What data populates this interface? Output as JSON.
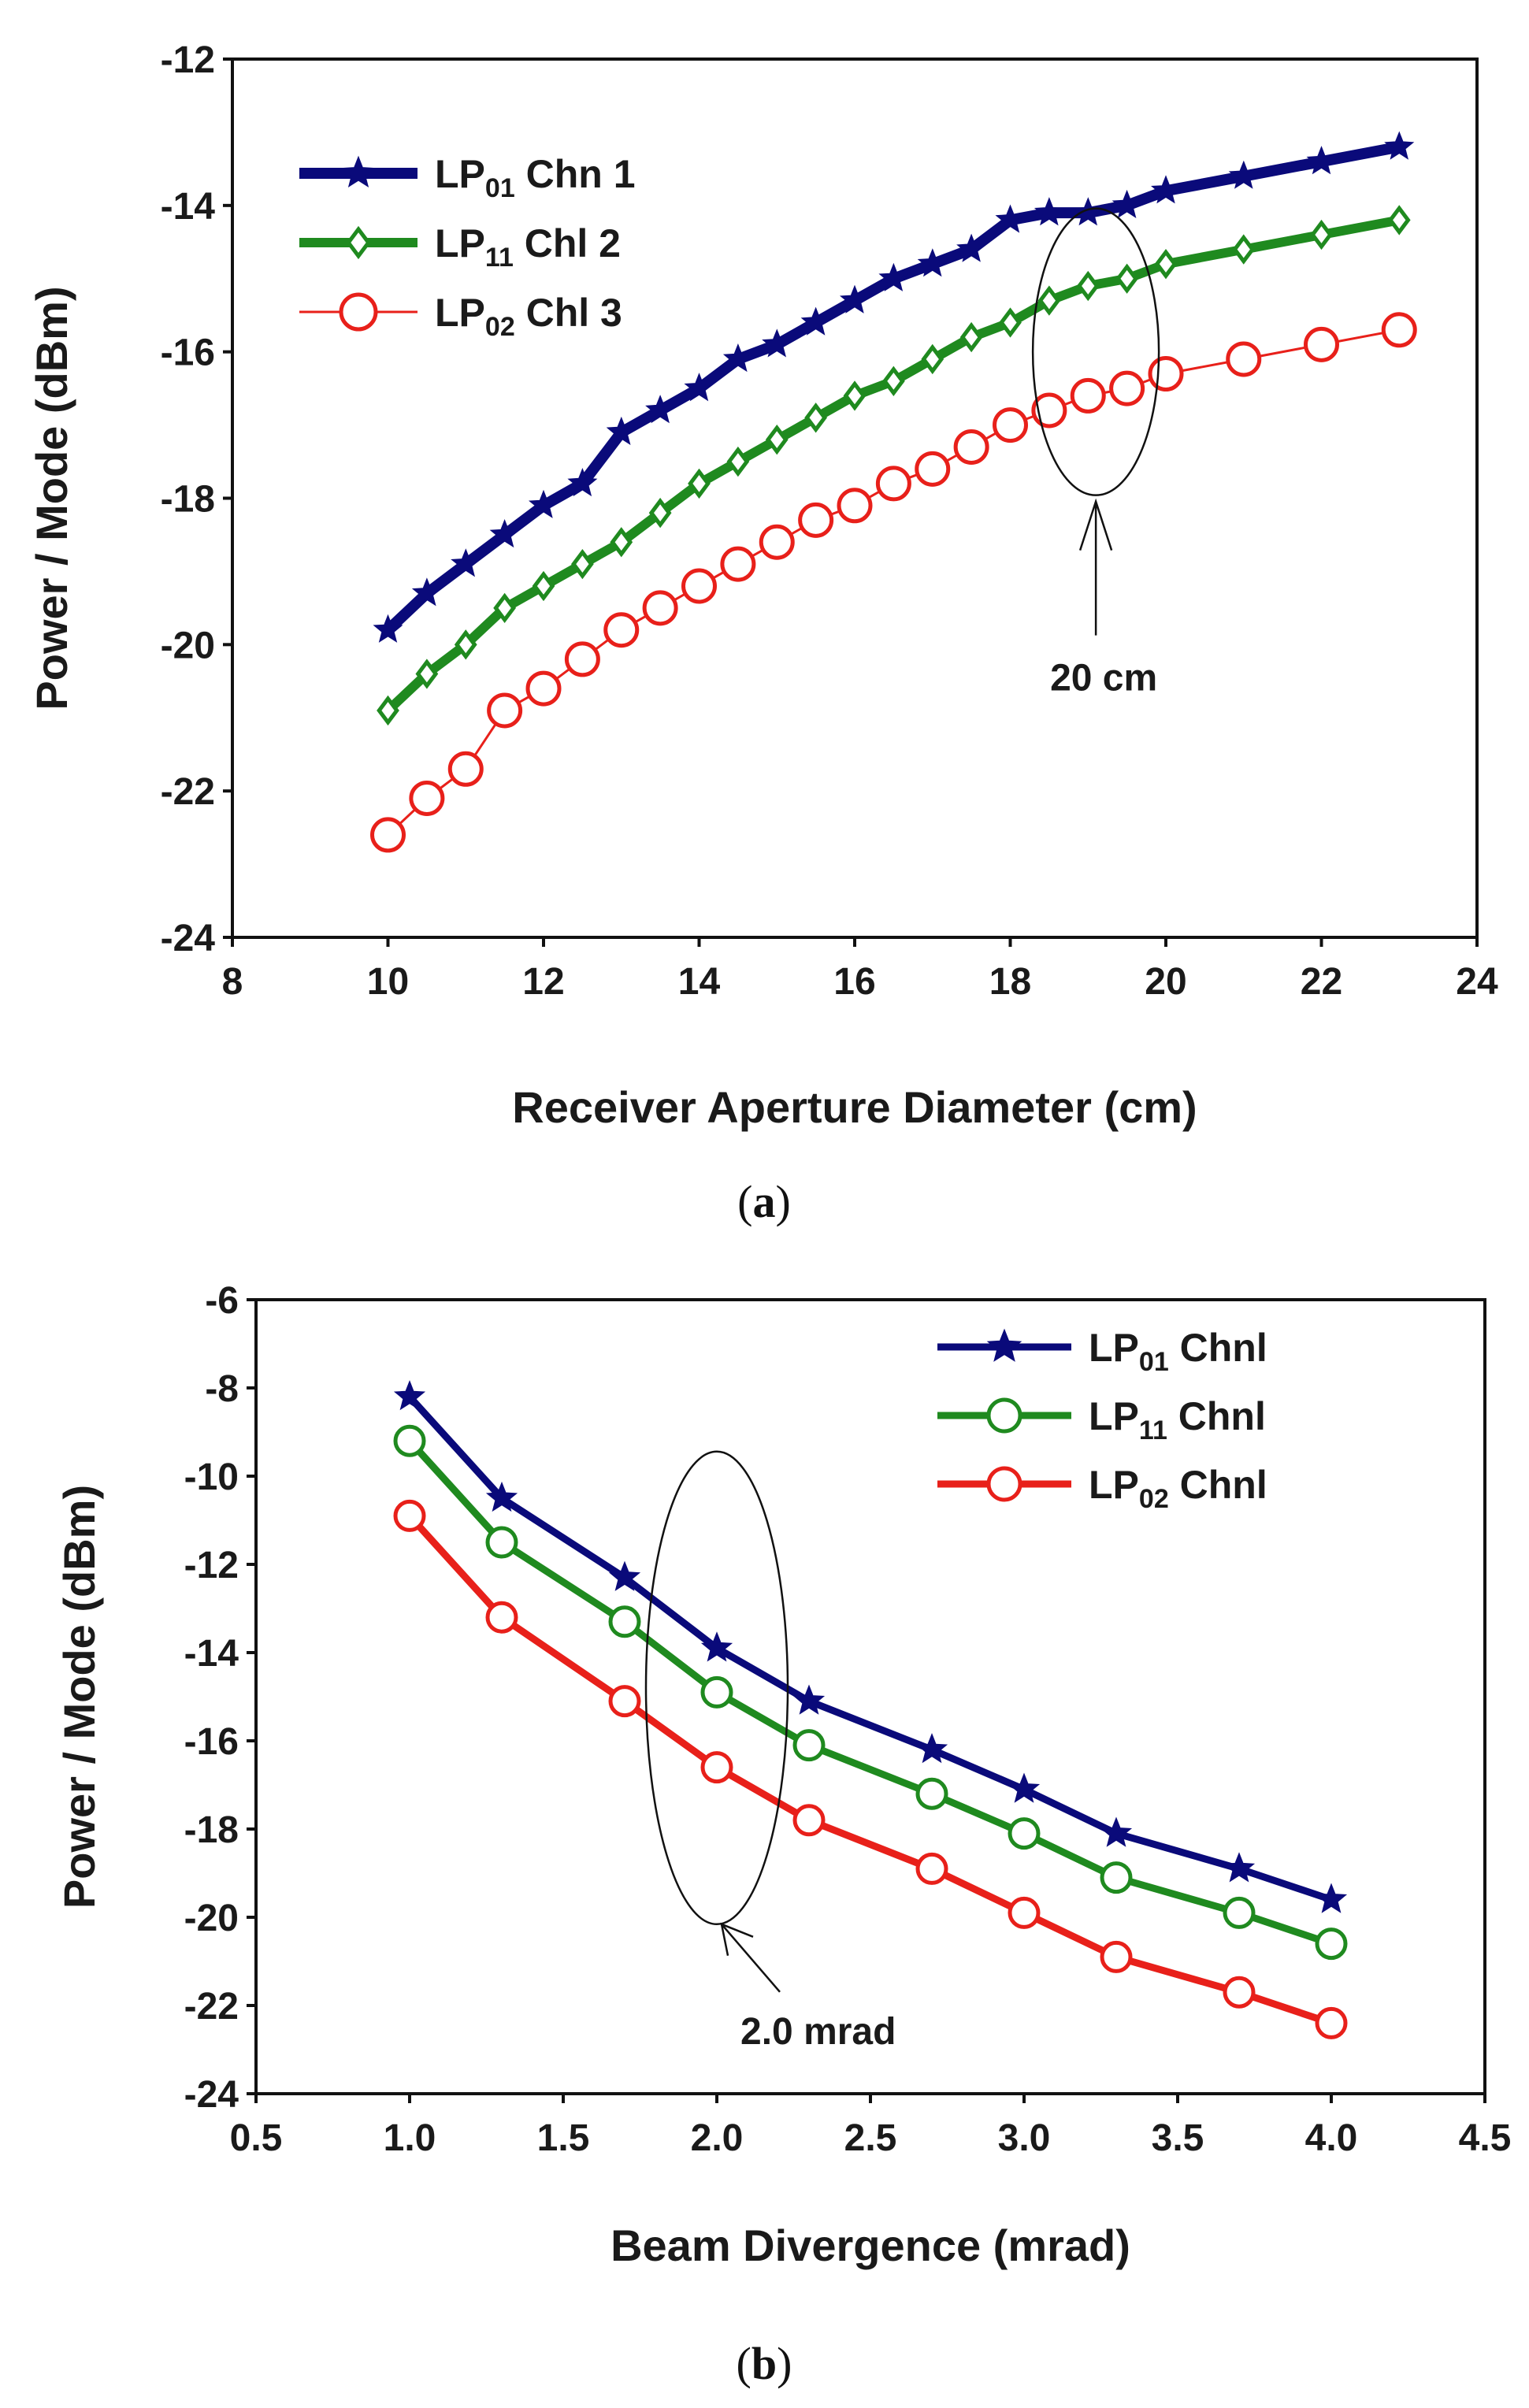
{
  "chart_data": [
    {
      "type": "line",
      "caption_letter": "a",
      "xlabel": "Receiver Aperture Diameter (cm)",
      "ylabel": "Power / Mode (dBm)",
      "xlim": [
        8,
        24
      ],
      "ylim": [
        -24,
        -12
      ],
      "xticks": [
        8,
        10,
        12,
        14,
        16,
        18,
        20,
        22,
        24
      ],
      "yticks": [
        -24,
        -22,
        -20,
        -18,
        -16,
        -14,
        -12
      ],
      "xtick_labels": [
        "8",
        "10",
        "12",
        "14",
        "16",
        "18",
        "20",
        "22",
        "24"
      ],
      "ytick_labels": [
        "-24",
        "-22",
        "-20",
        "-18",
        "-16",
        "-14",
        "-12"
      ],
      "legend_position": "top-left",
      "annotation": {
        "text": "20 cm",
        "ellipse_center": [
          19.1,
          -16.0
        ]
      },
      "series": [
        {
          "name_main": "LP",
          "name_sub": "01",
          "name_rest": " Chn 1",
          "color": "#0a0a7a",
          "marker": "star",
          "x": [
            10,
            10.5,
            11,
            11.5,
            12,
            12.5,
            13,
            13.5,
            14,
            14.5,
            15,
            15.5,
            16,
            16.5,
            17,
            17.5,
            18,
            18.5,
            19,
            19.5,
            20,
            21,
            22,
            23
          ],
          "y": [
            -19.8,
            -19.3,
            -18.9,
            -18.5,
            -18.1,
            -17.8,
            -17.1,
            -16.8,
            -16.5,
            -16.1,
            -15.9,
            -15.6,
            -15.3,
            -15.0,
            -14.8,
            -14.6,
            -14.2,
            -14.1,
            -14.1,
            -14.0,
            -13.8,
            -13.6,
            -13.4,
            -13.2
          ]
        },
        {
          "name_main": "LP",
          "name_sub": "11",
          "name_rest": " Chl 2",
          "color": "#1f8a1f",
          "marker": "diamond",
          "x": [
            10,
            10.5,
            11,
            11.5,
            12,
            12.5,
            13,
            13.5,
            14,
            14.5,
            15,
            15.5,
            16,
            16.5,
            17,
            17.5,
            18,
            18.5,
            19,
            19.5,
            20,
            21,
            22,
            23
          ],
          "y": [
            -20.9,
            -20.4,
            -20.0,
            -19.5,
            -19.2,
            -18.9,
            -18.6,
            -18.2,
            -17.8,
            -17.5,
            -17.2,
            -16.9,
            -16.6,
            -16.4,
            -16.1,
            -15.8,
            -15.6,
            -15.3,
            -15.1,
            -15.0,
            -14.8,
            -14.6,
            -14.4,
            -14.2
          ]
        },
        {
          "name_main": "LP",
          "name_sub": "02",
          "name_rest": " Chl 3",
          "color": "#e8201a",
          "marker": "circle",
          "x": [
            10,
            10.5,
            11,
            11.5,
            12,
            12.5,
            13,
            13.5,
            14,
            14.5,
            15,
            15.5,
            16,
            16.5,
            17,
            17.5,
            18,
            18.5,
            19,
            19.5,
            20,
            21,
            22,
            23
          ],
          "y": [
            -22.6,
            -22.1,
            -21.7,
            -20.9,
            -20.6,
            -20.2,
            -19.8,
            -19.5,
            -19.2,
            -18.9,
            -18.6,
            -18.3,
            -18.1,
            -17.8,
            -17.6,
            -17.3,
            -17.0,
            -16.8,
            -16.6,
            -16.5,
            -16.3,
            -16.1,
            -15.9,
            -15.7
          ]
        }
      ]
    },
    {
      "type": "line",
      "caption_letter": "b",
      "xlabel": "Beam Divergence (mrad)",
      "ylabel": "Power / Mode (dBm)",
      "xlim": [
        0.5,
        4.5
      ],
      "ylim": [
        -24,
        -6
      ],
      "xticks": [
        0.5,
        1.0,
        1.5,
        2.0,
        2.5,
        3.0,
        3.5,
        4.0,
        4.5
      ],
      "yticks": [
        -24,
        -22,
        -20,
        -18,
        -16,
        -14,
        -12,
        -10,
        -8,
        -6
      ],
      "xtick_labels": [
        "0.5",
        "1.0",
        "1.5",
        "2.0",
        "2.5",
        "3.0",
        "3.5",
        "4.0",
        "4.5"
      ],
      "ytick_labels": [
        "-24",
        "-22",
        "-20",
        "-18",
        "-16",
        "-14",
        "-12",
        "-10",
        "-8",
        "-6"
      ],
      "legend_position": "top-right",
      "annotation": {
        "text": "2.0 mrad",
        "ellipse_center": [
          2.0,
          -14.8
        ]
      },
      "series": [
        {
          "name_main": "LP",
          "name_sub": "01",
          "name_rest": " Chnl",
          "color": "#0a0a7a",
          "marker": "star",
          "x": [
            1.0,
            1.3,
            1.7,
            2.0,
            2.3,
            2.7,
            3.0,
            3.3,
            3.7,
            4.0
          ],
          "y": [
            -8.2,
            -10.5,
            -12.3,
            -13.9,
            -15.1,
            -16.2,
            -17.1,
            -18.1,
            -18.9,
            -19.6
          ]
        },
        {
          "name_main": "LP",
          "name_sub": "11",
          "name_rest": " Chnl",
          "color": "#1f8a1f",
          "marker": "circle",
          "x": [
            1.0,
            1.3,
            1.7,
            2.0,
            2.3,
            2.7,
            3.0,
            3.3,
            3.7,
            4.0
          ],
          "y": [
            -9.2,
            -11.5,
            -13.3,
            -14.9,
            -16.1,
            -17.2,
            -18.1,
            -19.1,
            -19.9,
            -20.6
          ]
        },
        {
          "name_main": "LP",
          "name_sub": "02",
          "name_rest": " Chnl",
          "color": "#e8201a",
          "marker": "circle",
          "x": [
            1.0,
            1.3,
            1.7,
            2.0,
            2.3,
            2.7,
            3.0,
            3.3,
            3.7,
            4.0
          ],
          "y": [
            -10.9,
            -13.2,
            -15.1,
            -16.6,
            -17.8,
            -18.9,
            -19.9,
            -20.9,
            -21.7,
            -22.4
          ]
        }
      ]
    }
  ]
}
